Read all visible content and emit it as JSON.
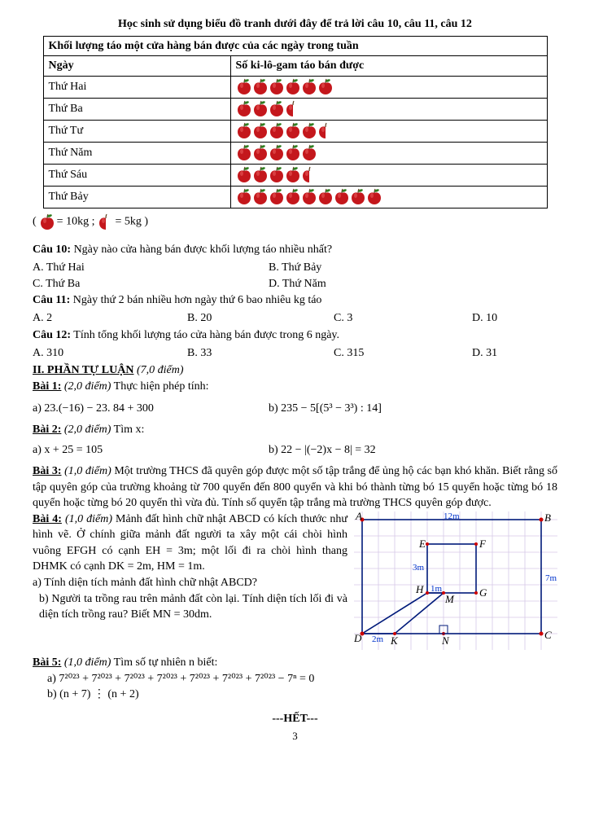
{
  "instruction": "Học sinh sử dụng biểu đồ tranh dưới đây để trả lời câu 10, câu 11, câu 12",
  "tableTitle": "Khối lượng táo một cửa hàng bán được của các ngày trong tuần",
  "col1Header": "Ngày",
  "col2Header": "Số ki-lô-gam táo bán được",
  "days": {
    "d0": {
      "label": "Thứ Hai",
      "apples": [
        1,
        1,
        1,
        1,
        1,
        1
      ]
    },
    "d1": {
      "label": "Thứ Ba",
      "apples": [
        1,
        1,
        1,
        0.5
      ]
    },
    "d2": {
      "label": "Thứ Tư",
      "apples": [
        1,
        1,
        1,
        1,
        1,
        0.5
      ]
    },
    "d3": {
      "label": "Thứ Năm",
      "apples": [
        1,
        1,
        1,
        1,
        1
      ]
    },
    "d4": {
      "label": "Thứ Sáu",
      "apples": [
        1,
        1,
        1,
        1,
        0.5
      ]
    },
    "d5": {
      "label": "Thứ Bảy",
      "apples": [
        1,
        1,
        1,
        1,
        1,
        1,
        1,
        1,
        1
      ]
    }
  },
  "legend": {
    "open": "(",
    "full": " = 10kg  ; ",
    "half": " = 5kg )",
    "appleFullSize": 1,
    "appleHalfSize": 0.5
  },
  "q10": {
    "label": "Câu 10:",
    "text": " Ngày nào cửa hàng bán được khối lượng táo nhiều nhất?",
    "a": "A. Thứ Hai",
    "b": "B.  Thứ Bảy",
    "c": "C.  Thứ Ba",
    "d": "D.  Thứ Năm"
  },
  "q11": {
    "label": "Câu 11:",
    "text": " Ngày thứ 2 bán nhiều hơn ngày thứ 6 bao nhiêu kg táo",
    "a": "A. 2",
    "b": "B.   20",
    "c": "C.  3",
    "d": "D.   10"
  },
  "q12": {
    "label": "Câu 12:",
    "text": " Tính tổng khối lượng táo cửa hàng bán được trong 6 ngày.",
    "a": "A. 310",
    "b": "B.  33",
    "c": "C. 315",
    "d": "D.   31"
  },
  "section2": "II. PHẦN TỰ LUẬN",
  "section2pts": " (7,0 điểm)",
  "bai1": {
    "label": "Bài 1:",
    "pts": " (2,0 điểm)",
    "text": " Thực hiện phép tính:",
    "a": "a)  23.(−16) − 23. 84 + 300",
    "b": "b)  235 − 5[(5³ − 3³) : 14]"
  },
  "bai2": {
    "label": "Bài 2:",
    "pts": " (2,0 điểm)",
    "text": " Tìm x:",
    "a": "a)  x + 25 = 105",
    "b": "b)  22 − |(−2)x − 8| = 32"
  },
  "bai3": {
    "label": "Bài 3:",
    "pts": " (1,0 điểm)",
    "text": " Một trường THCS đã quyên góp được một số tập trắng để ủng hộ các bạn khó khăn. Biết rằng số tập quyên góp của trường khoảng từ 700 quyển đến 800 quyển và khi bó thành từng bó 15 quyển hoặc từng bó 18 quyển hoặc từng bó 20 quyển thì vừa đủ. Tính số quyển tập trắng mà trường THCS quyên góp được."
  },
  "bai4": {
    "label": "Bài 4:",
    "pts": " (1,0 điểm)",
    "p1": " Mảnh đất hình chữ nhật ABCD có kích thước như hình vẽ. Ở chính giữa mảnh đất người ta xây một cái chòi hình vuông EFGH có cạnh EH = 3m; một lối đi ra chòi hình thang DHMK có cạnh DK = 2m, HM = 1m.",
    "qa": "  a) Tính diện tích mảnh đất hình chữ nhật ABCD?",
    "qb": "  b) Người ta trồng rau trên mảnh đất còn lại. Tính diện tích lối đi và diện tích trồng rau? Biết MN = 30dm."
  },
  "bai5": {
    "label": "Bài 5:",
    "pts": " (1,0 điểm)",
    "text": " Tìm số tự nhiên n biết:",
    "a": "a)   7²⁰²³ + 7²⁰²³ + 7²⁰²³ + 7²⁰²³ + 7²⁰²³ + 7²⁰²³ + 7²⁰²³ − 7ⁿ = 0",
    "b": "b)   (n + 7) ⋮ (n + 2)"
  },
  "footer": "---HẾT---",
  "pageNum": "3",
  "figure": {
    "gridColor": "#d6c8e8",
    "lineColor": "#001a7a",
    "labelA": "A",
    "labelB": "B",
    "labelC": "C",
    "labelD": "D",
    "labelE": "E",
    "labelF": "F",
    "labelG": "G",
    "labelH": "H",
    "labelK": "K",
    "labelM": "M",
    "labelN": "N",
    "dim12m": "12m",
    "dim7m": "7m",
    "dim3m": "3m",
    "dim2m": "2m",
    "dim1m": "1m"
  },
  "appleColors": {
    "body": "#c4171c",
    "leaf": "#2e7d1f",
    "stem": "#5a3a1a",
    "highlight": "#f08080"
  }
}
